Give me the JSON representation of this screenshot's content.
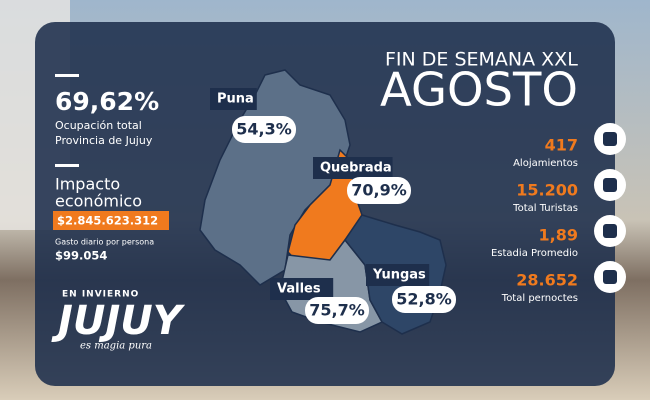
{
  "header": {
    "line1": "FIN DE SEMANA XXL",
    "line2": "AGOSTO"
  },
  "occupancy": {
    "value": "69,62%",
    "label_lines": [
      "Ocupación total",
      "Provincia de Jujuy"
    ]
  },
  "impact": {
    "title_lines": [
      "Impacto",
      "económico"
    ],
    "amount": "$2.845.623.312",
    "daily_label": "Gasto diario por persona",
    "daily_value": "$99.054"
  },
  "regions": [
    {
      "name": "Puna",
      "value": "54,3%"
    },
    {
      "name": "Quebrada",
      "value": "70,9%"
    },
    {
      "name": "Valles",
      "value": "75,7%"
    },
    {
      "name": "Yungas",
      "value": "52,8%"
    }
  ],
  "stats": [
    {
      "value": "417",
      "label": "Alojamientos"
    },
    {
      "value": "15.200",
      "label": "Total Turistas"
    },
    {
      "value": "1,89",
      "label": "Estadia Promedio"
    },
    {
      "value": "28.652",
      "label": "Total pernoctes"
    }
  ],
  "brand": {
    "top": "EN INVIERNO",
    "name": "JUJUY",
    "tagline": "es magia pura"
  }
}
